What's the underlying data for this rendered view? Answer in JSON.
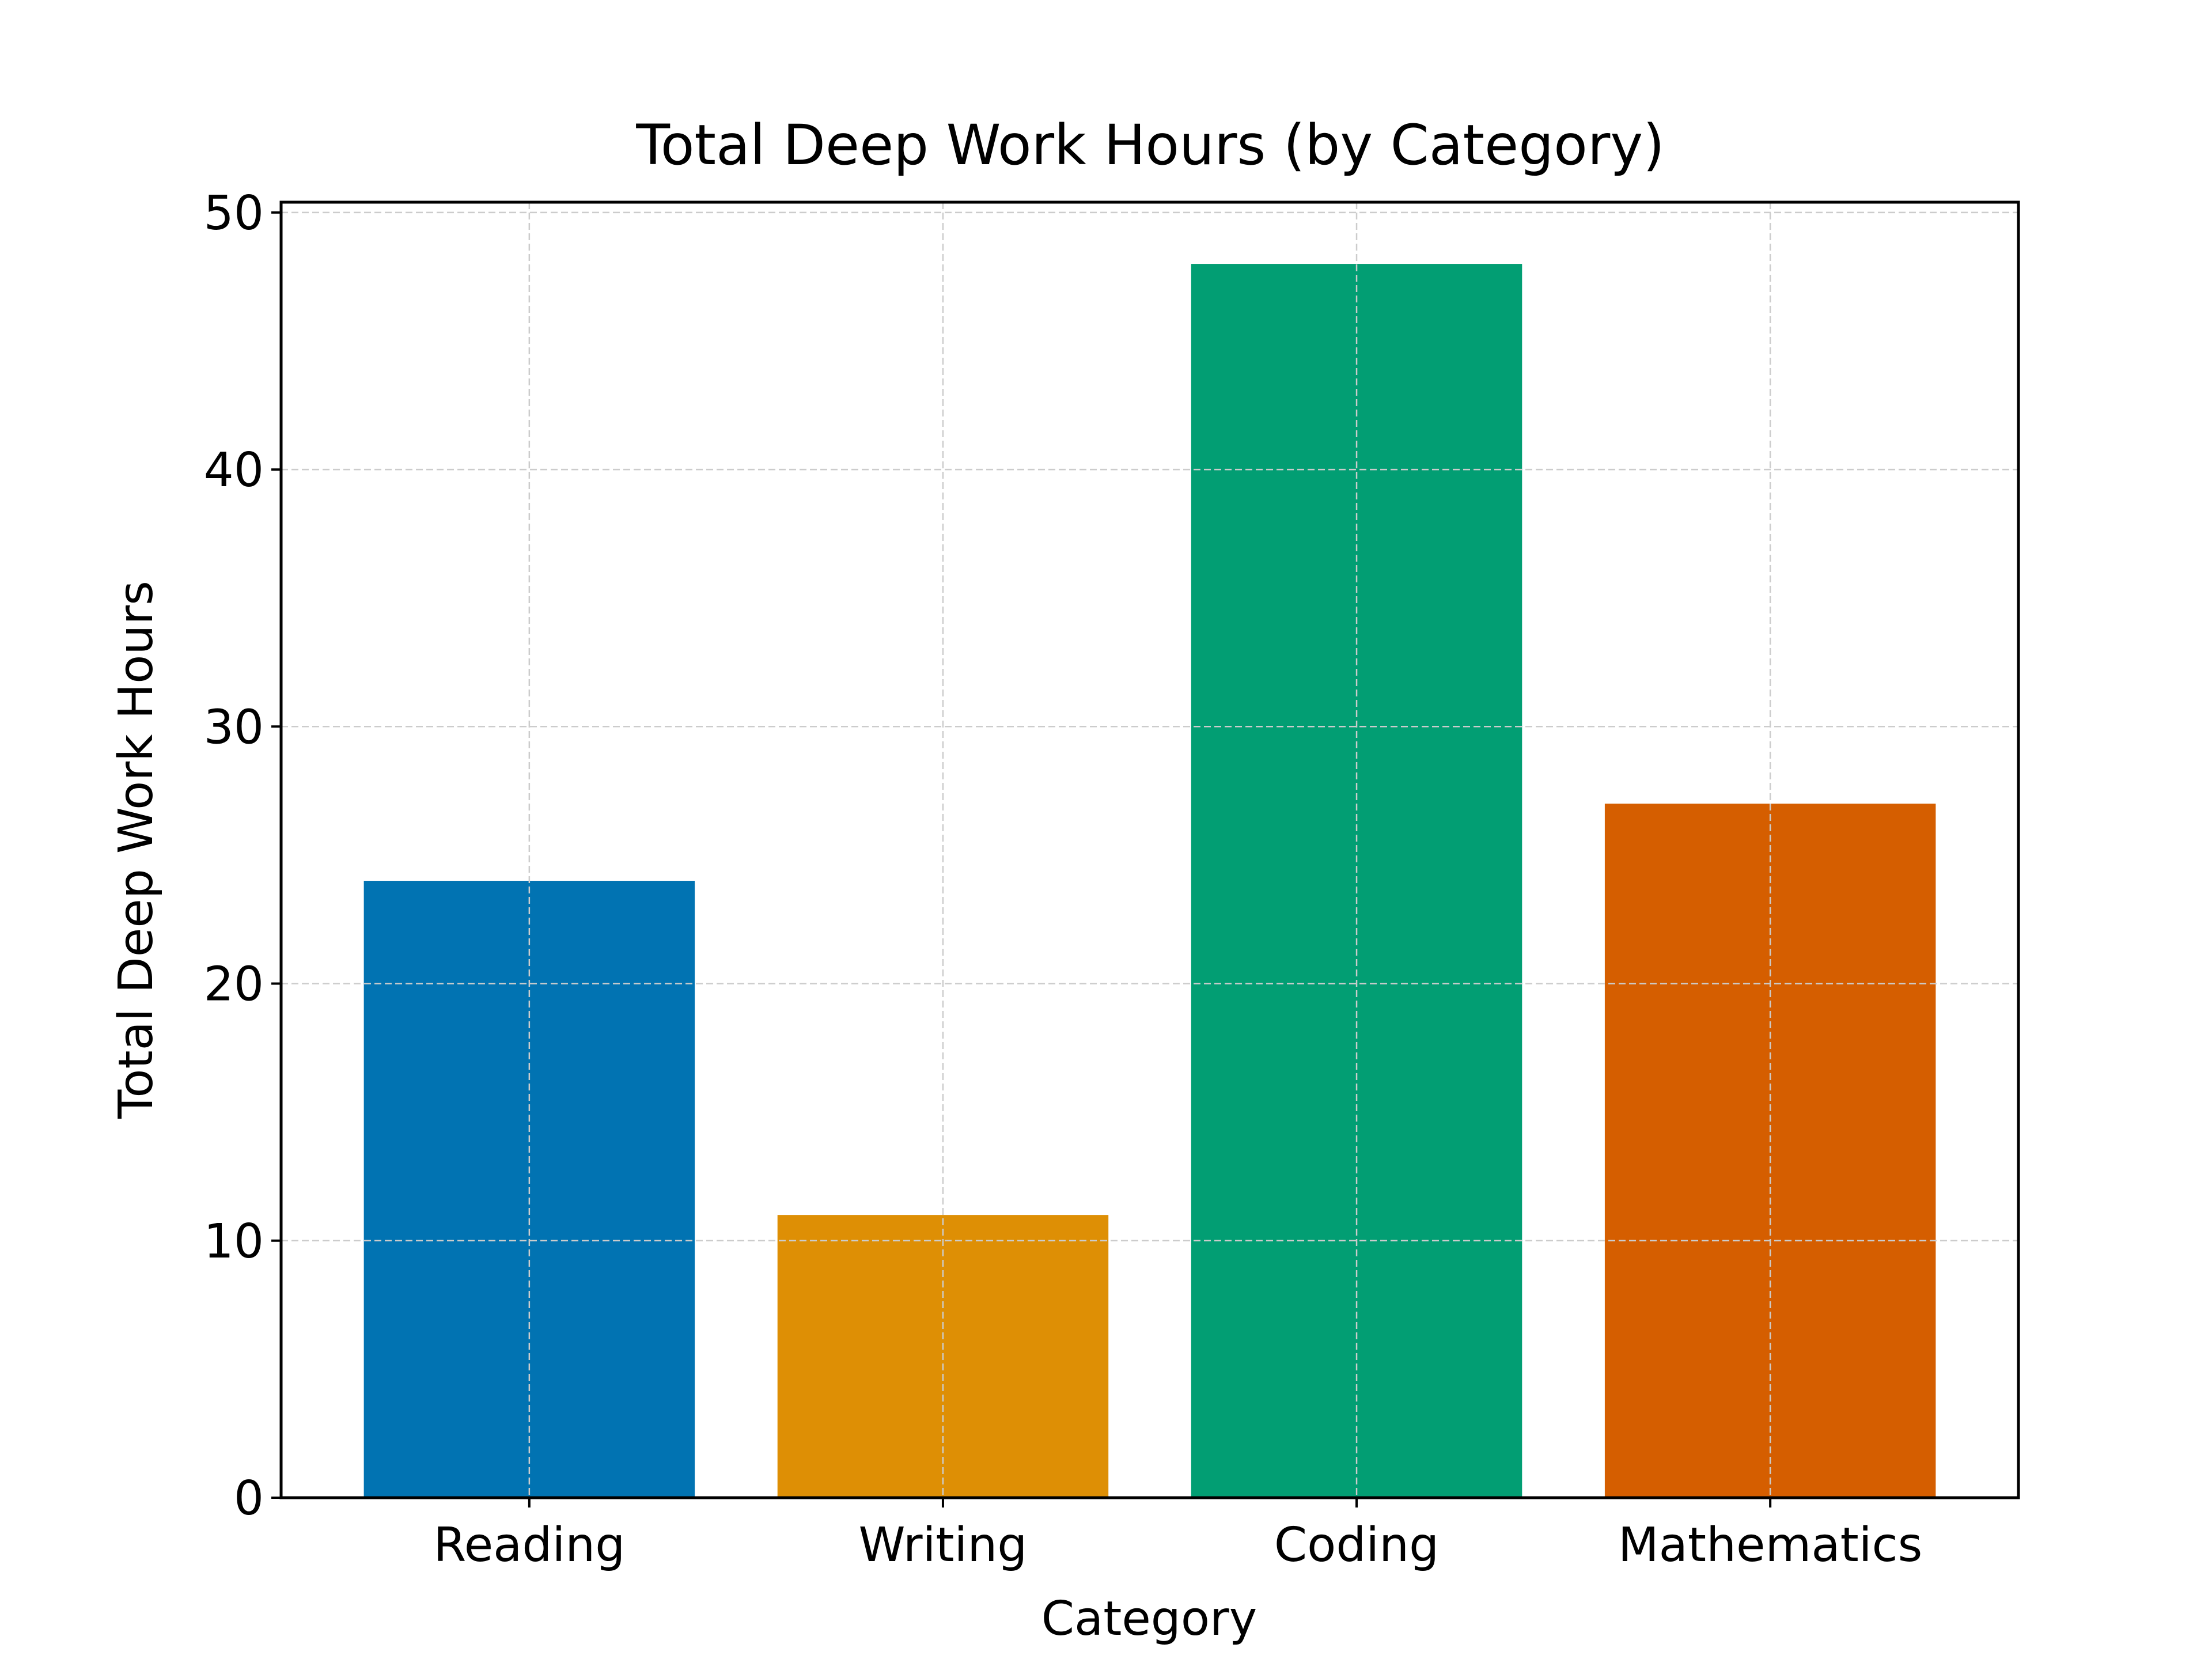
{
  "chart_data": {
    "type": "bar",
    "title": "Total Deep Work Hours (by Category)",
    "xlabel": "Category",
    "ylabel": "Total Deep Work Hours",
    "categories": [
      "Reading",
      "Writing",
      "Coding",
      "Mathematics"
    ],
    "values": [
      24,
      11,
      48,
      27
    ],
    "colors": [
      "#0173b2",
      "#de8f05",
      "#029e73",
      "#d55e00"
    ],
    "ylim": [
      0,
      50.4
    ],
    "yticks": [
      0,
      10,
      20,
      30,
      40,
      50
    ],
    "grid": true,
    "grid_color": "#cccccc",
    "legend": "none"
  }
}
